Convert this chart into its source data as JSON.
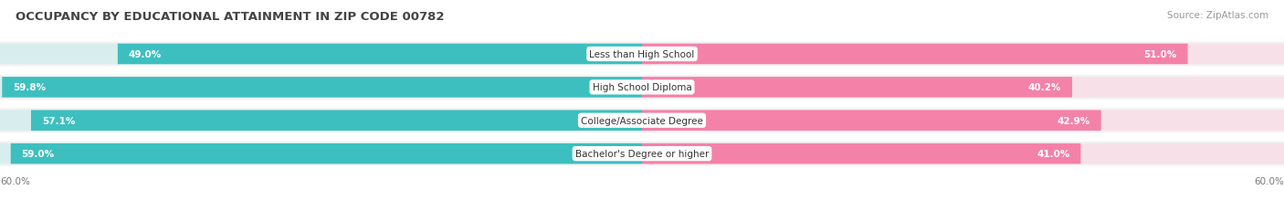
{
  "title": "OCCUPANCY BY EDUCATIONAL ATTAINMENT IN ZIP CODE 00782",
  "source": "Source: ZipAtlas.com",
  "categories": [
    "Less than High School",
    "High School Diploma",
    "College/Associate Degree",
    "Bachelor's Degree or higher"
  ],
  "owner_values": [
    49.0,
    59.8,
    57.1,
    59.0
  ],
  "renter_values": [
    51.0,
    40.2,
    42.9,
    41.0
  ],
  "owner_color": "#3DBFBF",
  "renter_color": "#F482A8",
  "owner_bg_color": "#D8EEEE",
  "renter_bg_color": "#F8E0E8",
  "row_bg_color": "#F2F2F2",
  "axis_label_left": "60.0%",
  "axis_label_right": "60.0%",
  "title_fontsize": 9.5,
  "source_fontsize": 7.5,
  "value_fontsize": 7.5,
  "cat_fontsize": 7.5,
  "legend_fontsize": 8,
  "background_color": "#FFFFFF",
  "max_val": 60.0
}
